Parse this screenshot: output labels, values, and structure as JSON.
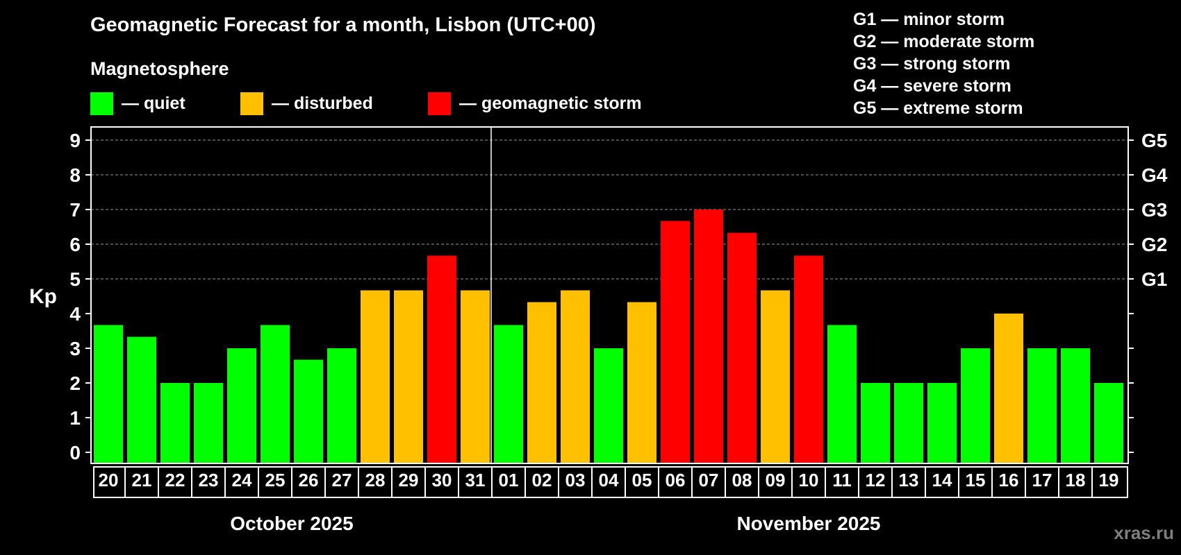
{
  "title": "Geomagnetic Forecast for a month, Lisbon (UTC+00)",
  "legend": {
    "heading": "Magnetosphere",
    "items": [
      {
        "label": "— quiet",
        "color": "#00ff00"
      },
      {
        "label": "— disturbed",
        "color": "#ffc000"
      },
      {
        "label": "— geomagnetic storm",
        "color": "#ff0000"
      }
    ]
  },
  "storm_scale": [
    "G1 — minor storm",
    "G2 — moderate storm",
    "G3 — strong storm",
    "G4 — severe storm",
    "G5 — extreme storm"
  ],
  "watermark": "xras.ru",
  "chart_data": {
    "type": "bar",
    "ylabel": "Kp",
    "ylim": [
      0,
      9
    ],
    "yticks": [
      0,
      1,
      2,
      3,
      4,
      5,
      6,
      7,
      8,
      9
    ],
    "right_axis_labels": [
      {
        "value": 5,
        "label": "G1"
      },
      {
        "value": 6,
        "label": "G2"
      },
      {
        "value": 7,
        "label": "G3"
      },
      {
        "value": 8,
        "label": "G4"
      },
      {
        "value": 9,
        "label": "G5"
      }
    ],
    "grid": "horizontal dashed at 5–9",
    "months": [
      {
        "label": "October 2025",
        "days": 12
      },
      {
        "label": "November 2025",
        "days": 19
      }
    ],
    "categories": [
      "20",
      "21",
      "22",
      "23",
      "24",
      "25",
      "26",
      "27",
      "28",
      "29",
      "30",
      "31",
      "01",
      "02",
      "03",
      "04",
      "05",
      "06",
      "07",
      "08",
      "09",
      "10",
      "11",
      "12",
      "13",
      "14",
      "15",
      "16",
      "17",
      "18",
      "19"
    ],
    "values": [
      3.67,
      3.33,
      2,
      2,
      3,
      3.67,
      2.67,
      3,
      4.67,
      4.67,
      5.67,
      4.67,
      3.67,
      4.33,
      4.67,
      3,
      4.33,
      6.67,
      7,
      6.33,
      4.67,
      5.67,
      3.67,
      2,
      2,
      2,
      3,
      4,
      3,
      3,
      2
    ],
    "levels": [
      "quiet",
      "quiet",
      "quiet",
      "quiet",
      "quiet",
      "quiet",
      "quiet",
      "quiet",
      "disturbed",
      "disturbed",
      "storm",
      "disturbed",
      "quiet",
      "disturbed",
      "disturbed",
      "quiet",
      "disturbed",
      "storm",
      "storm",
      "storm",
      "disturbed",
      "storm",
      "quiet",
      "quiet",
      "quiet",
      "quiet",
      "quiet",
      "disturbed",
      "quiet",
      "quiet",
      "quiet"
    ],
    "colors": {
      "quiet": "#00ff00",
      "disturbed": "#ffc000",
      "storm": "#ff0000"
    }
  }
}
